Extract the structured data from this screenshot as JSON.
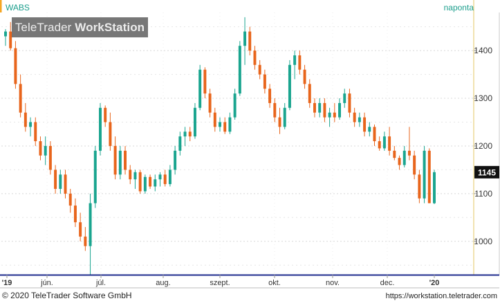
{
  "header": {
    "ticker": "WABS",
    "period": "naponta",
    "brand_light": "TeleTrader ",
    "brand_bold": "WorkStation"
  },
  "footer": {
    "copyright": "© 2020 TeleTrader Software GmbH",
    "url": "https://workstation.teletrader.com"
  },
  "chart_data": {
    "type": "candlestick",
    "ticker": "WABS",
    "interval": "naponta",
    "ylim": [
      930,
      1480
    ],
    "y_ticks": [
      1000,
      1100,
      1200,
      1300,
      1400
    ],
    "last_price_label": "1145",
    "grid": true,
    "x_ticks": [
      "'19",
      "jún.",
      "júl.",
      "aug.",
      "szept.",
      "okt.",
      "nov.",
      "dec.",
      "'20"
    ],
    "up_color": "#1aa58f",
    "down_color": "#e8651c",
    "candles": [
      [
        1430,
        1445,
        1410,
        1440
      ],
      [
        1440,
        1460,
        1400,
        1405
      ],
      [
        1405,
        1420,
        1320,
        1330
      ],
      [
        1330,
        1350,
        1260,
        1270
      ],
      [
        1270,
        1290,
        1230,
        1240
      ],
      [
        1240,
        1260,
        1220,
        1250
      ],
      [
        1250,
        1260,
        1200,
        1210
      ],
      [
        1210,
        1220,
        1170,
        1180
      ],
      [
        1180,
        1220,
        1160,
        1200
      ],
      [
        1200,
        1210,
        1140,
        1150
      ],
      [
        1150,
        1160,
        1100,
        1110
      ],
      [
        1110,
        1150,
        1100,
        1140
      ],
      [
        1140,
        1150,
        1090,
        1100
      ],
      [
        1100,
        1110,
        1060,
        1075
      ],
      [
        1075,
        1090,
        1030,
        1040
      ],
      [
        1040,
        1060,
        1000,
        1010
      ],
      [
        1010,
        1030,
        980,
        990
      ],
      [
        990,
        1100,
        930,
        1080
      ],
      [
        1080,
        1200,
        1070,
        1190
      ],
      [
        1190,
        1290,
        1180,
        1280
      ],
      [
        1280,
        1285,
        1240,
        1250
      ],
      [
        1250,
        1270,
        1190,
        1200
      ],
      [
        1200,
        1220,
        1130,
        1140
      ],
      [
        1140,
        1200,
        1130,
        1190
      ],
      [
        1190,
        1200,
        1140,
        1150
      ],
      [
        1150,
        1160,
        1120,
        1130
      ],
      [
        1130,
        1150,
        1110,
        1145
      ],
      [
        1145,
        1150,
        1100,
        1105
      ],
      [
        1105,
        1140,
        1100,
        1135
      ],
      [
        1135,
        1140,
        1110,
        1115
      ],
      [
        1115,
        1140,
        1105,
        1130
      ],
      [
        1130,
        1145,
        1115,
        1140
      ],
      [
        1140,
        1150,
        1115,
        1120
      ],
      [
        1120,
        1160,
        1115,
        1150
      ],
      [
        1150,
        1200,
        1140,
        1190
      ],
      [
        1190,
        1230,
        1180,
        1220
      ],
      [
        1220,
        1240,
        1200,
        1230
      ],
      [
        1230,
        1240,
        1210,
        1220
      ],
      [
        1220,
        1290,
        1215,
        1280
      ],
      [
        1280,
        1370,
        1275,
        1360
      ],
      [
        1360,
        1365,
        1300,
        1310
      ],
      [
        1310,
        1320,
        1260,
        1270
      ],
      [
        1270,
        1280,
        1230,
        1240
      ],
      [
        1240,
        1260,
        1230,
        1250
      ],
      [
        1250,
        1260,
        1225,
        1230
      ],
      [
        1230,
        1270,
        1225,
        1260
      ],
      [
        1260,
        1320,
        1255,
        1310
      ],
      [
        1310,
        1420,
        1305,
        1410
      ],
      [
        1410,
        1470,
        1370,
        1440
      ],
      [
        1440,
        1450,
        1390,
        1400
      ],
      [
        1400,
        1410,
        1360,
        1370
      ],
      [
        1370,
        1380,
        1340,
        1350
      ],
      [
        1350,
        1360,
        1310,
        1320
      ],
      [
        1320,
        1330,
        1280,
        1290
      ],
      [
        1290,
        1300,
        1250,
        1260
      ],
      [
        1260,
        1280,
        1225,
        1240
      ],
      [
        1240,
        1290,
        1235,
        1280
      ],
      [
        1280,
        1380,
        1275,
        1370
      ],
      [
        1370,
        1400,
        1340,
        1390
      ],
      [
        1390,
        1400,
        1350,
        1360
      ],
      [
        1360,
        1370,
        1320,
        1330
      ],
      [
        1330,
        1340,
        1280,
        1290
      ],
      [
        1290,
        1300,
        1260,
        1270
      ],
      [
        1270,
        1300,
        1260,
        1290
      ],
      [
        1290,
        1300,
        1250,
        1260
      ],
      [
        1260,
        1280,
        1240,
        1270
      ],
      [
        1270,
        1290,
        1250,
        1260
      ],
      [
        1260,
        1300,
        1255,
        1290
      ],
      [
        1290,
        1320,
        1280,
        1310
      ],
      [
        1310,
        1320,
        1260,
        1270
      ],
      [
        1270,
        1280,
        1240,
        1250
      ],
      [
        1250,
        1270,
        1240,
        1260
      ],
      [
        1260,
        1270,
        1220,
        1230
      ],
      [
        1230,
        1250,
        1220,
        1240
      ],
      [
        1240,
        1245,
        1200,
        1210
      ],
      [
        1210,
        1220,
        1190,
        1195
      ],
      [
        1195,
        1230,
        1190,
        1220
      ],
      [
        1220,
        1240,
        1180,
        1190
      ],
      [
        1190,
        1200,
        1170,
        1175
      ],
      [
        1175,
        1180,
        1150,
        1160
      ],
      [
        1160,
        1200,
        1155,
        1190
      ],
      [
        1190,
        1240,
        1170,
        1180
      ],
      [
        1180,
        1190,
        1130,
        1140
      ],
      [
        1140,
        1150,
        1080,
        1090
      ],
      [
        1090,
        1200,
        1080,
        1190
      ],
      [
        1190,
        1195,
        1080,
        1080
      ],
      [
        1080,
        1150,
        1078,
        1145
      ]
    ]
  }
}
